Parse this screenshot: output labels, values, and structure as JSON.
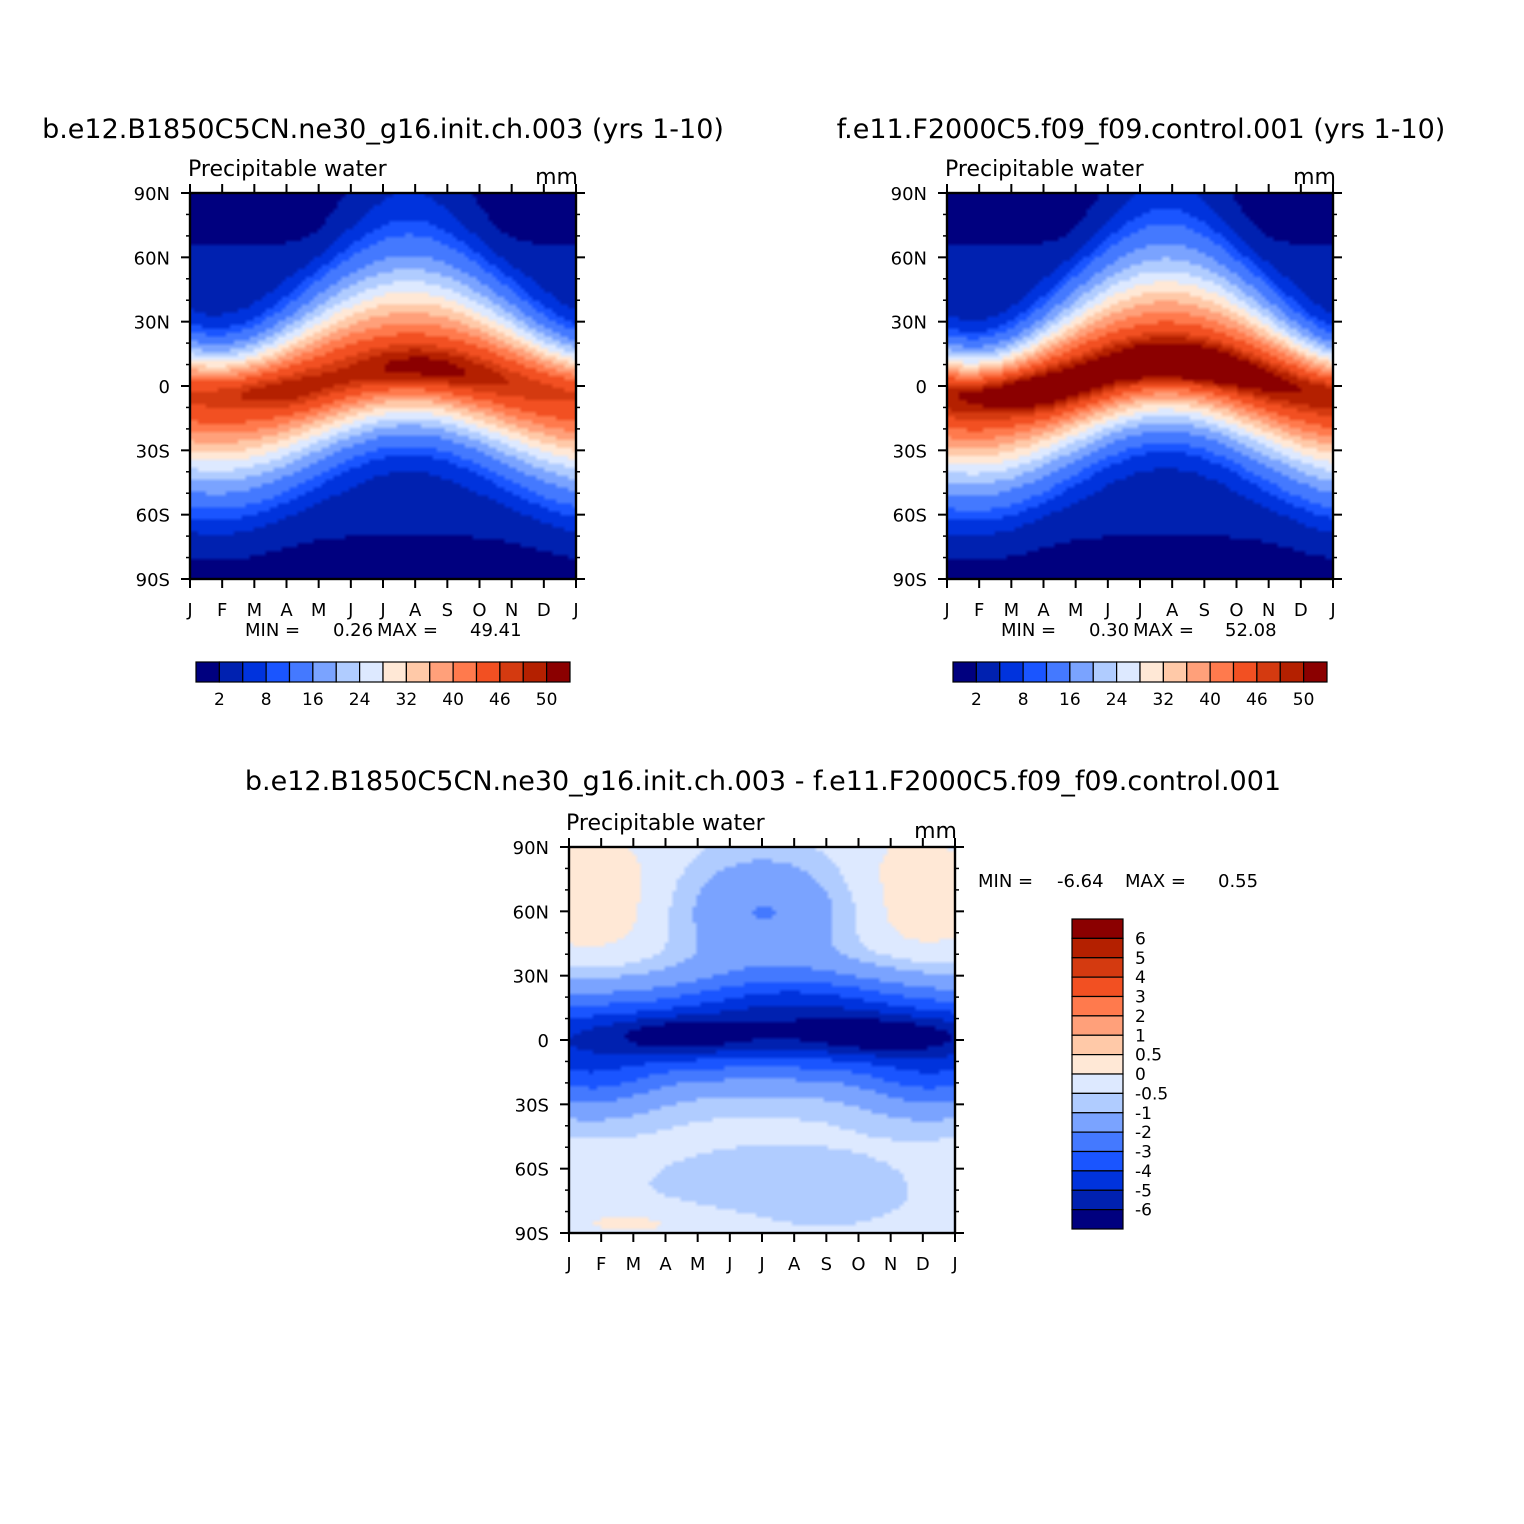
{
  "chart_data": [
    {
      "type": "heatmap",
      "title": "b.e12.B1850C5CN.ne30_g16.init.ch.003 (yrs 1-10)",
      "subtitle": "Precipitable water",
      "units": "mm",
      "x_ticks": [
        "J",
        "F",
        "M",
        "A",
        "M",
        "J",
        "J",
        "A",
        "S",
        "O",
        "N",
        "D",
        "J"
      ],
      "y_ticks": [
        "90N",
        "60N",
        "30N",
        "0",
        "30S",
        "60S",
        "90S"
      ],
      "xlim": [
        0,
        12
      ],
      "ylim": [
        -90,
        90
      ],
      "min_label": "MIN =",
      "min_value": "0.26",
      "max_label": "MAX =",
      "max_value": "49.41",
      "legend_position": "bottom",
      "legend_labels": [
        "2",
        "8",
        "16",
        "24",
        "32",
        "40",
        "46",
        "50"
      ],
      "colors": [
        "#00007f",
        "#0021b0",
        "#0033dd",
        "#1a55ff",
        "#4479ff",
        "#7aa3ff",
        "#b0ccff",
        "#dde9ff",
        "#ffe8d6",
        "#ffc9a8",
        "#ffa07a",
        "#ff7a4d",
        "#f25022",
        "#d43a10",
        "#b42000",
        "#8b0000"
      ]
    },
    {
      "type": "heatmap",
      "title": "f.e11.F2000C5.f09_f09.control.001 (yrs 1-10)",
      "subtitle": "Precipitable water",
      "units": "mm",
      "x_ticks": [
        "J",
        "F",
        "M",
        "A",
        "M",
        "J",
        "J",
        "A",
        "S",
        "O",
        "N",
        "D",
        "J"
      ],
      "y_ticks": [
        "90N",
        "60N",
        "30N",
        "0",
        "30S",
        "60S",
        "90S"
      ],
      "xlim": [
        0,
        12
      ],
      "ylim": [
        -90,
        90
      ],
      "min_label": "MIN =",
      "min_value": "0.30",
      "max_label": "MAX =",
      "max_value": "52.08",
      "legend_position": "bottom",
      "legend_labels": [
        "2",
        "8",
        "16",
        "24",
        "32",
        "40",
        "46",
        "50"
      ],
      "colors": [
        "#00007f",
        "#0021b0",
        "#0033dd",
        "#1a55ff",
        "#4479ff",
        "#7aa3ff",
        "#b0ccff",
        "#dde9ff",
        "#ffe8d6",
        "#ffc9a8",
        "#ffa07a",
        "#ff7a4d",
        "#f25022",
        "#d43a10",
        "#b42000",
        "#8b0000"
      ]
    },
    {
      "type": "heatmap",
      "title": "b.e12.B1850C5CN.ne30_g16.init.ch.003 - f.e11.F2000C5.f09_f09.control.001",
      "subtitle": "Precipitable water",
      "units": "mm",
      "x_ticks": [
        "J",
        "F",
        "M",
        "A",
        "M",
        "J",
        "J",
        "A",
        "S",
        "O",
        "N",
        "D",
        "J"
      ],
      "y_ticks": [
        "90N",
        "60N",
        "30N",
        "0",
        "30S",
        "60S",
        "90S"
      ],
      "xlim": [
        0,
        12
      ],
      "ylim": [
        -90,
        90
      ],
      "min_label": "MIN =",
      "min_value": "-6.64",
      "max_label": "MAX =",
      "max_value": "0.55",
      "legend_position": "right",
      "legend_labels": [
        "6",
        "5",
        "4",
        "3",
        "2",
        "1",
        "0.5",
        "0",
        "-0.5",
        "-1",
        "-2",
        "-3",
        "-4",
        "-5",
        "-6"
      ],
      "colors": [
        "#8b0000",
        "#b42000",
        "#d43a10",
        "#f25022",
        "#ff7a4d",
        "#ffa07a",
        "#ffc9a8",
        "#ffe8d6",
        "#dde9ff",
        "#b0ccff",
        "#7aa3ff",
        "#4479ff",
        "#1a55ff",
        "#0033dd",
        "#0021b0",
        "#00007f"
      ]
    }
  ]
}
